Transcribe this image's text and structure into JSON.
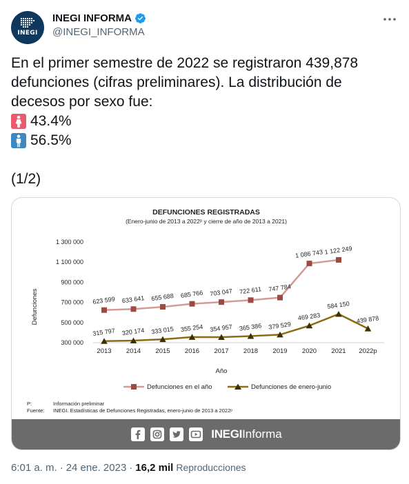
{
  "account": {
    "name": "INEGI INFORMA",
    "handle": "@INEGI_INFORMA",
    "avatar_label": "INEGI",
    "verified_color": "#1d9bf0"
  },
  "tweet": {
    "line1": "En el primer semestre de 2022 se registraron 439,878",
    "line2": "defunciones (cifras preliminares). La distribución de",
    "line3": "decesos por sexo fue:",
    "female_pct": "43.4%",
    "male_pct": "56.5%",
    "thread": "(1/2)",
    "female_icon": "woman-symbol-icon",
    "male_icon": "man-symbol-icon",
    "female_color": "#ea596e",
    "male_color": "#3b88c3"
  },
  "meta": {
    "time": "6:01 a. m.",
    "sep": "·",
    "date": "24 ene. 2023",
    "sep2": "·",
    "views": "16,2 mil",
    "views_label": "Reproducciones"
  },
  "image_footer": {
    "brand_bold": "INEGI",
    "brand_rest": "Informa",
    "icons": [
      "facebook-icon",
      "instagram-icon",
      "twitter-icon",
      "youtube-icon"
    ]
  },
  "chart_data": {
    "type": "line",
    "title": "DEFUNCIONES REGISTRADAS",
    "subtitle": "(Enero-junio de 2013 a 2022ᵖ y cierre de año de 2013 a 2021)",
    "xlabel": "Año",
    "ylabel": "Defunciones",
    "categories": [
      "2013",
      "2014",
      "2015",
      "2016",
      "2017",
      "2018",
      "2019",
      "2020",
      "2021",
      "2022p"
    ],
    "yticks": [
      "1 300 000",
      "1 100 000",
      "900 000",
      "700 000",
      "500 000",
      "300 000"
    ],
    "ytick_values": [
      1300000,
      1100000,
      900000,
      700000,
      500000,
      300000
    ],
    "ylim": [
      300000,
      1300000
    ],
    "grid": false,
    "legend_placement": "bottom",
    "series": [
      {
        "name": "Defunciones en el año",
        "color": "#d49a94",
        "marker": "square",
        "marker_color": "#9c4a42",
        "values": [
          623599,
          633641,
          655688,
          685766,
          703047,
          722611,
          747784,
          1086743,
          1122249,
          null
        ],
        "labels": [
          "623 599",
          "633 641",
          "655 688",
          "685 766",
          "703 047",
          "722 611",
          "747 784",
          "1 086 743",
          "1 122 249",
          ""
        ]
      },
      {
        "name": "Defunciones de enero-junio",
        "color": "#8a6d12",
        "marker": "triangle",
        "marker_color": "#3d3000",
        "values": [
          315797,
          320174,
          333015,
          355254,
          354957,
          365386,
          379529,
          469283,
          584150,
          439878
        ],
        "labels": [
          "315 797",
          "320 174",
          "333 015",
          "355 254",
          "354 957",
          "365 386",
          "379 529",
          "469 283",
          "584 150",
          "439 878"
        ]
      }
    ],
    "notes": [
      {
        "key": "P:",
        "text": "Información preliminar"
      },
      {
        "key": "Fuente:",
        "text": "INEGI. Estadísticas de Defunciones Registradas, enero-junio de 2013 a 2022ᵖ"
      }
    ]
  }
}
